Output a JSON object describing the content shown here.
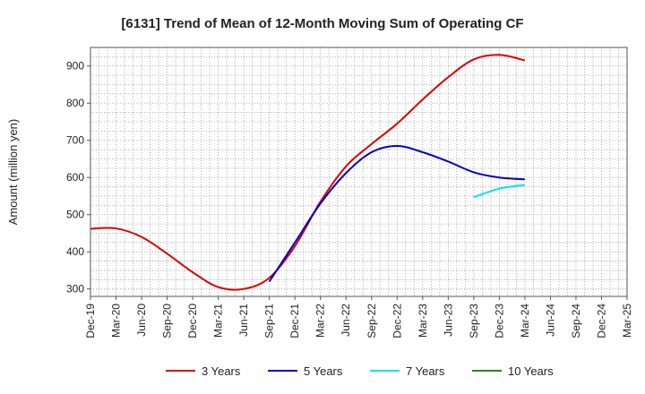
{
  "chart_data": {
    "type": "line",
    "title": "[6131]  Trend of Mean of 12-Month Moving Sum of Operating CF",
    "xlabel": "",
    "ylabel": "Amount (million yen)",
    "ylim": [
      280,
      950
    ],
    "yticks": [
      300,
      400,
      500,
      600,
      700,
      800,
      900
    ],
    "categories": [
      "Dec-19",
      "Mar-20",
      "Jun-20",
      "Sep-20",
      "Dec-20",
      "Mar-21",
      "Jun-21",
      "Sep-21",
      "Dec-21",
      "Mar-22",
      "Jun-22",
      "Sep-22",
      "Dec-22",
      "Mar-23",
      "Jun-23",
      "Sep-23",
      "Dec-23",
      "Mar-24",
      "Jun-24",
      "Sep-24",
      "Dec-24",
      "Mar-25"
    ],
    "grid": true,
    "legend_position": "bottom",
    "series": [
      {
        "name": "3 Years",
        "color": "#dd0000",
        "values": [
          462,
          463,
          440,
          395,
          345,
          305,
          300,
          330,
          415,
          535,
          630,
          690,
          745,
          810,
          870,
          918,
          930,
          915,
          null,
          null,
          null,
          null
        ]
      },
      {
        "name": "5 Years",
        "color": "#0000cc",
        "values": [
          null,
          null,
          null,
          null,
          null,
          null,
          null,
          320,
          425,
          530,
          612,
          668,
          685,
          668,
          643,
          614,
          600,
          595,
          null,
          null,
          null,
          null
        ]
      },
      {
        "name": "7 Years",
        "color": "#00e5ee",
        "values": [
          null,
          null,
          null,
          null,
          null,
          null,
          null,
          null,
          null,
          null,
          null,
          null,
          null,
          null,
          null,
          547,
          570,
          580,
          null,
          null,
          null,
          null
        ]
      },
      {
        "name": "10 Years",
        "color": "#228b22",
        "values": [
          null,
          null,
          null,
          null,
          null,
          null,
          null,
          null,
          null,
          null,
          null,
          null,
          null,
          null,
          null,
          null,
          null,
          null,
          null,
          null,
          null,
          null
        ]
      }
    ]
  }
}
